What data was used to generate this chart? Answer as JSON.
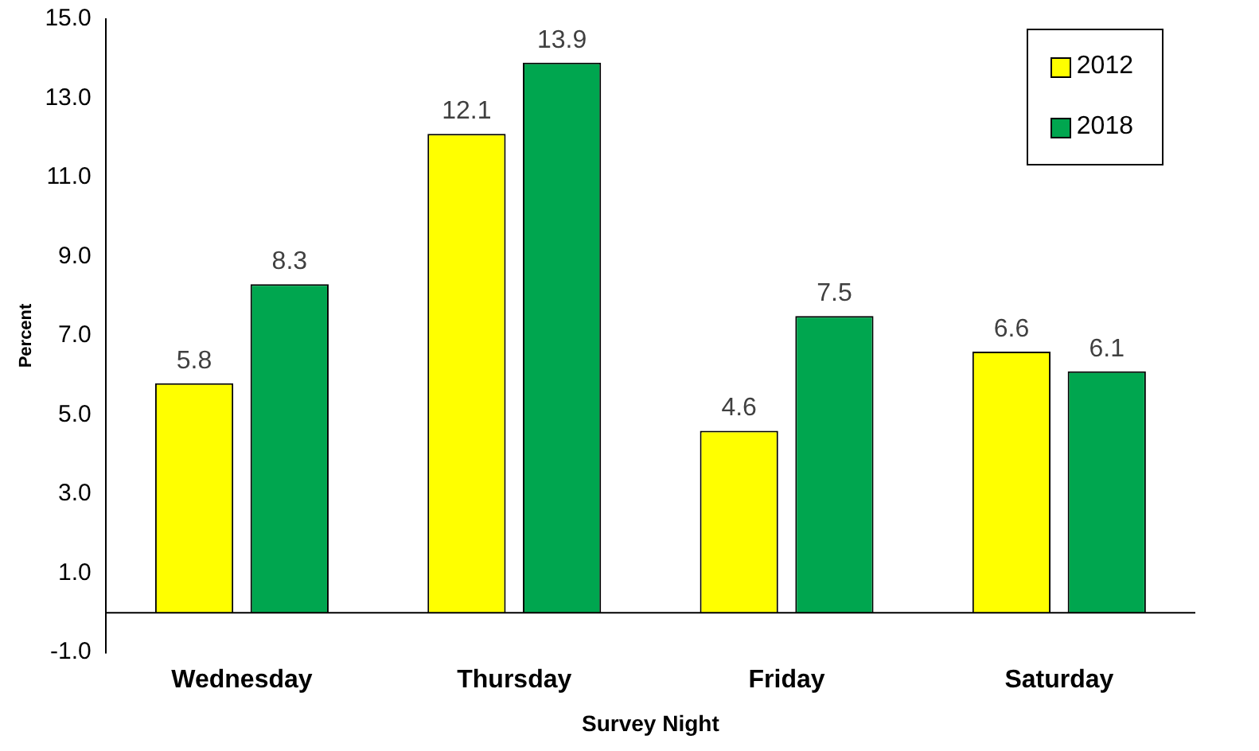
{
  "chart_data": {
    "type": "bar",
    "xlabel": "Survey Night",
    "ylabel": "Percent",
    "categories": [
      "Wednesday",
      "Thursday",
      "Friday",
      "Saturday"
    ],
    "series": [
      {
        "name": "2012",
        "color": "#ffff00",
        "values": [
          5.8,
          12.1,
          4.6,
          6.6
        ]
      },
      {
        "name": "2018",
        "color": "#00a64f",
        "values": [
          8.3,
          13.9,
          7.5,
          6.1
        ]
      }
    ],
    "ylim": [
      -1,
      15
    ],
    "yticks": [
      {
        "value": -1,
        "label": "-1.0"
      },
      {
        "value": 1,
        "label": "1.0"
      },
      {
        "value": 3,
        "label": "3.0"
      },
      {
        "value": 5,
        "label": "5.0"
      },
      {
        "value": 7,
        "label": "7.0"
      },
      {
        "value": 9,
        "label": "9.0"
      },
      {
        "value": 11,
        "label": "11.0"
      },
      {
        "value": 13,
        "label": "13.0"
      },
      {
        "value": 15,
        "label": "15.0"
      }
    ],
    "data_labels": true,
    "legend": "top right",
    "grid": false
  }
}
